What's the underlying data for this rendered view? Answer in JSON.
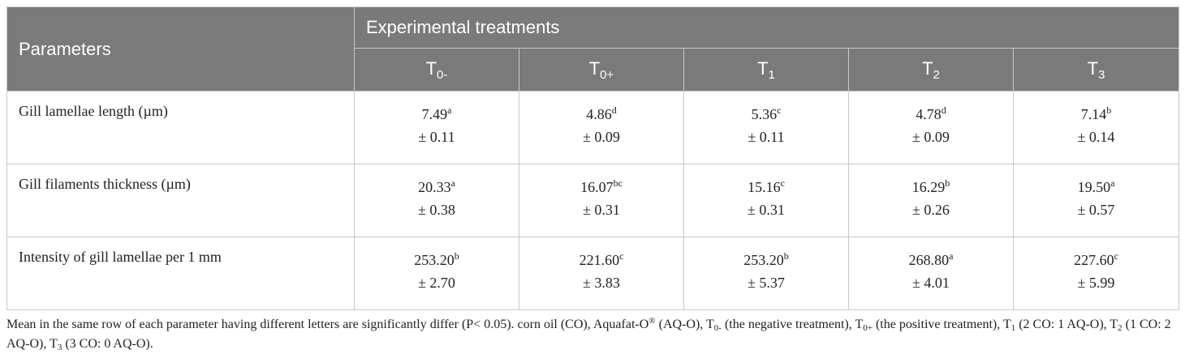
{
  "header": {
    "parameters": "Parameters",
    "experimental": "Experimental treatments",
    "treatments": [
      {
        "base": "T",
        "sub": "0-"
      },
      {
        "base": "T",
        "sub": "0+"
      },
      {
        "base": "T",
        "sub": "1"
      },
      {
        "base": "T",
        "sub": "2"
      },
      {
        "base": "T",
        "sub": "3"
      }
    ]
  },
  "rows": [
    {
      "param": "Gill lamellae length (µm)",
      "cells": [
        {
          "mean": "7.49",
          "sup": "a",
          "sd": "± 0.11"
        },
        {
          "mean": "4.86",
          "sup": "d",
          "sd": "± 0.09"
        },
        {
          "mean": "5.36",
          "sup": "c",
          "sd": "± 0.11"
        },
        {
          "mean": "4.78",
          "sup": "d",
          "sd": "± 0.09"
        },
        {
          "mean": "7.14",
          "sup": "b",
          "sd": "± 0.14"
        }
      ]
    },
    {
      "param": "Gill filaments thickness (µm)",
      "cells": [
        {
          "mean": "20.33",
          "sup": "a",
          "sd": "± 0.38"
        },
        {
          "mean": "16.07",
          "sup": "bc",
          "sd": "± 0.31"
        },
        {
          "mean": "15.16",
          "sup": "c",
          "sd": "± 0.31"
        },
        {
          "mean": "16.29",
          "sup": "b",
          "sd": "± 0.26"
        },
        {
          "mean": "19.50",
          "sup": "a",
          "sd": "± 0.57"
        }
      ]
    },
    {
      "param": "Intensity of gill lamellae per 1 mm",
      "cells": [
        {
          "mean": "253.20",
          "sup": "b",
          "sd": "± 2.70"
        },
        {
          "mean": "221.60",
          "sup": "c",
          "sd": "± 3.83"
        },
        {
          "mean": "253.20",
          "sup": "b",
          "sd": "± 5.37"
        },
        {
          "mean": "268.80",
          "sup": "a",
          "sd": "± 4.01"
        },
        {
          "mean": "227.60",
          "sup": "c",
          "sd": "± 5.99"
        }
      ]
    }
  ],
  "footnote": {
    "f0": "Mean in the same row of each parameter having different letters are significantly differ (P< 0.05). corn oil (CO), Aquafat-O",
    "f0_sup": "®",
    "f1": " (AQ-O), T",
    "f1_sub": "0-",
    "f2": " (the negative treatment), T",
    "f2_sub": "0+",
    "f3": " (the positive treatment), T",
    "f3_sub": "1",
    "f4": " (2 CO: 1 AQ-O), T",
    "f4_sub": "2",
    "f5": " (1 CO: 2 AQ-O), T",
    "f5_sub": "3",
    "f6": " (3 CO: 0 AQ-O)."
  }
}
